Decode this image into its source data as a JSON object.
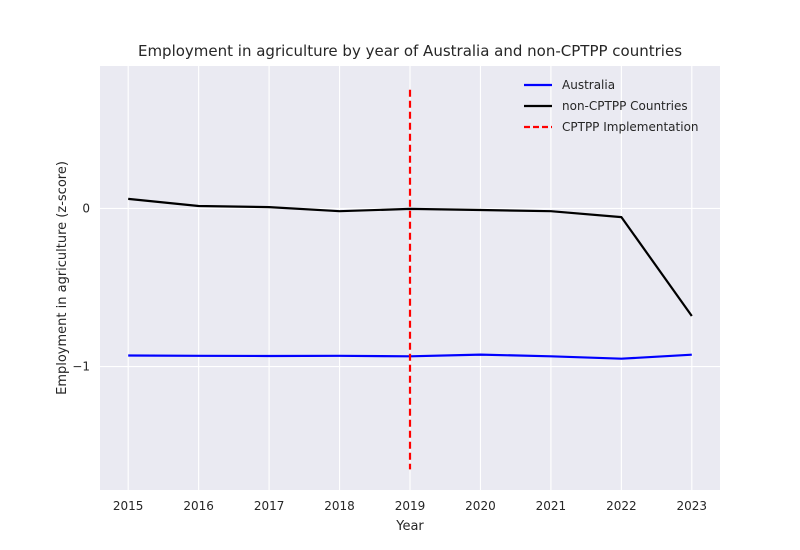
{
  "chart_data": {
    "type": "line",
    "title": "Employment in agriculture by year of Australia and non-CPTPP countries",
    "xlabel": "Year",
    "ylabel": "Employment in agriculture (z-score)",
    "x": [
      2015,
      2016,
      2017,
      2018,
      2019,
      2020,
      2021,
      2022,
      2023
    ],
    "xlim": [
      2014.6,
      2023.4
    ],
    "ylim": [
      -1.78,
      0.9
    ],
    "yticks": [
      0,
      -1
    ],
    "grid": true,
    "legend_position": "top-right",
    "series": [
      {
        "name": "Australia",
        "color": "#0000ff",
        "style": "solid",
        "values": [
          -0.93,
          -0.932,
          -0.933,
          -0.932,
          -0.935,
          -0.924,
          -0.935,
          -0.95,
          -0.925
        ]
      },
      {
        "name": "non-CPTPP Countries",
        "color": "#000000",
        "style": "solid",
        "values": [
          0.06,
          0.015,
          0.008,
          -0.018,
          -0.003,
          -0.01,
          -0.018,
          -0.055,
          -0.68
        ]
      }
    ],
    "vline": {
      "name": "CPTPP Implementation",
      "x": 2019,
      "y_range": [
        -1.65,
        0.75
      ],
      "color": "#ff0000",
      "style": "dashed"
    },
    "background_color": "#eaeaf2",
    "grid_color": "#ffffff"
  }
}
